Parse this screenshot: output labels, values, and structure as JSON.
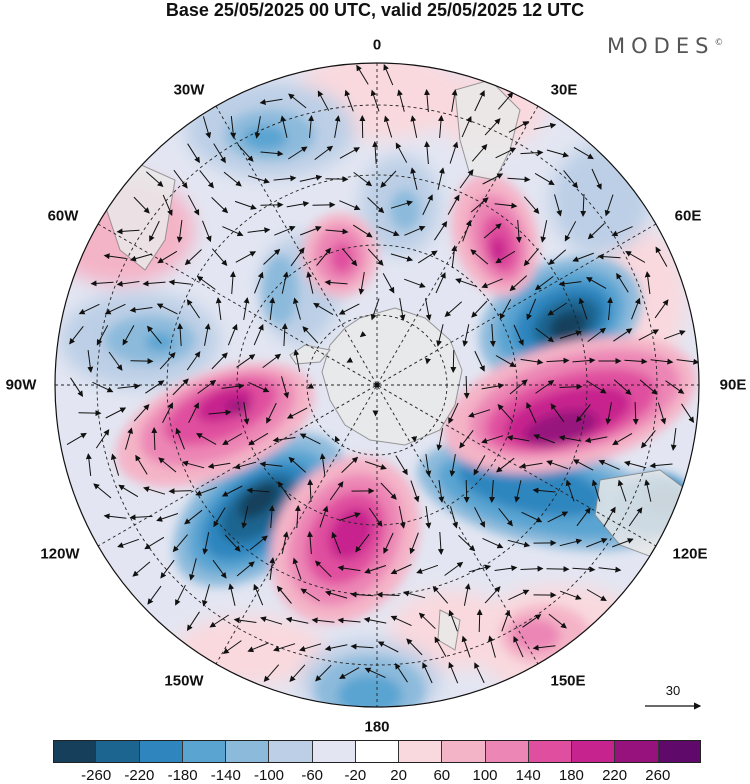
{
  "title": "Base 25/05/2025 00 UTC, valid 25/05/2025 12 UTC",
  "brand": "MODES",
  "brand_mark": "©",
  "longitude_labels": {
    "lon_0": "0",
    "lon_30e": "30E",
    "lon_60e": "60E",
    "lon_90e": "90E",
    "lon_120e": "120E",
    "lon_150e": "150E",
    "lon_180": "180",
    "lon_150w": "150W",
    "lon_120w": "120W",
    "lon_90w": "90W",
    "lon_60w": "60W",
    "lon_30w": "30W"
  },
  "reference_vector": {
    "value": "30"
  },
  "colorbar": {
    "labels": [
      "-260",
      "-220",
      "-180",
      "-140",
      "-100",
      "-60",
      "-20",
      "20",
      "60",
      "100",
      "140",
      "180",
      "220",
      "260"
    ],
    "colors": [
      "#163f5c",
      "#1d6591",
      "#2f86bf",
      "#5aa4d2",
      "#8cbadb",
      "#bccfe6",
      "#e3e6f2",
      "#ffffff",
      "#f9d9de",
      "#f4b4c7",
      "#ec86b5",
      "#e04f9f",
      "#c7238e",
      "#97127d",
      "#5f0a6b"
    ]
  },
  "palette": {
    "land": "#e9e9e9",
    "coast": "#888888",
    "grid": "#222222",
    "vector": "#111111"
  }
}
